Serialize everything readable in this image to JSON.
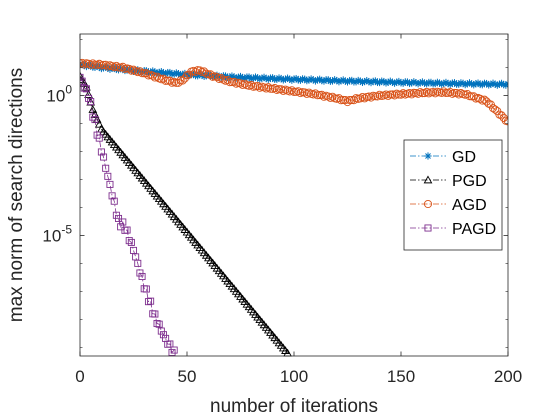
{
  "chart_data": {
    "type": "line",
    "title": "",
    "xlabel": "number of iterations",
    "ylabel": "max norm of search directions",
    "xlim": [
      0,
      200
    ],
    "ylim_log10": [
      -9.3,
      2.2
    ],
    "yscale": "log",
    "x_ticks": [
      0,
      50,
      100,
      150,
      200
    ],
    "x_tick_labels": [
      "0",
      "50",
      "100",
      "150",
      "200"
    ],
    "y_ticks_log10": [
      0,
      -5
    ],
    "y_tick_labels": [
      {
        "base": "10",
        "exp": "0"
      },
      {
        "base": "10",
        "exp": "-5"
      }
    ],
    "grid": false,
    "legend_position": "right",
    "series": [
      {
        "name": "GD",
        "color": "#0072BD",
        "marker": "asterisk",
        "line": "dashdot",
        "x_end": 200,
        "log10_points": [
          [
            0,
            1.1
          ],
          [
            10,
            1.0
          ],
          [
            25,
            0.9
          ],
          [
            50,
            0.75
          ],
          [
            75,
            0.65
          ],
          [
            100,
            0.58
          ],
          [
            125,
            0.52
          ],
          [
            150,
            0.47
          ],
          [
            175,
            0.43
          ],
          [
            200,
            0.4
          ]
        ]
      },
      {
        "name": "PGD",
        "color": "#000000",
        "marker": "triangle",
        "line": "dashdot",
        "x_end": 97,
        "log10_points": [
          [
            0,
            0.7
          ],
          [
            3,
            0.3
          ],
          [
            6,
            -0.5
          ],
          [
            10,
            -1.2
          ],
          [
            97,
            -9.2
          ]
        ]
      },
      {
        "name": "AGD",
        "color": "#D95319",
        "marker": "circle",
        "line": "dashdot",
        "x_end": 200,
        "log10_points": [
          [
            0,
            1.15
          ],
          [
            10,
            1.1
          ],
          [
            20,
            1.0
          ],
          [
            30,
            0.8
          ],
          [
            40,
            0.55
          ],
          [
            45,
            0.45
          ],
          [
            48,
            0.55
          ],
          [
            52,
            0.85
          ],
          [
            56,
            0.9
          ],
          [
            62,
            0.7
          ],
          [
            70,
            0.5
          ],
          [
            80,
            0.35
          ],
          [
            90,
            0.25
          ],
          [
            100,
            0.15
          ],
          [
            110,
            0.05
          ],
          [
            120,
            -0.1
          ],
          [
            125,
            -0.2
          ],
          [
            130,
            -0.1
          ],
          [
            140,
            0.0
          ],
          [
            150,
            0.05
          ],
          [
            160,
            0.1
          ],
          [
            170,
            0.12
          ],
          [
            180,
            0.05
          ],
          [
            190,
            -0.2
          ],
          [
            200,
            -0.95
          ]
        ]
      },
      {
        "name": "PAGD",
        "color": "#7E2F8E",
        "marker": "square",
        "line": "dashdot",
        "x_end": 44,
        "log10_points": [
          [
            0,
            0.65
          ],
          [
            4,
            0.0
          ],
          [
            8,
            -1.3
          ],
          [
            14,
            -3.2
          ],
          [
            18,
            -4.5
          ],
          [
            21,
            -4.7
          ],
          [
            25,
            -5.5
          ],
          [
            30,
            -6.8
          ],
          [
            35,
            -7.9
          ],
          [
            40,
            -8.7
          ],
          [
            44,
            -9.2
          ]
        ]
      }
    ]
  }
}
